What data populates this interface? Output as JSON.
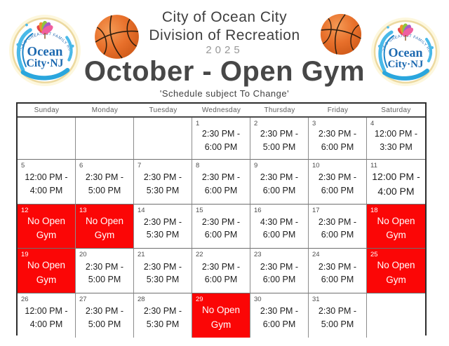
{
  "header": {
    "org_line1": "City of Ocean City",
    "org_line2": "Division of Recreation",
    "year": "2025",
    "title": "October - Open Gym",
    "note": "'Schedule subject To Change'"
  },
  "logo": {
    "arc_text": "AMERICA'S GREATEST FAMILY RESORT",
    "line1": "Ocean",
    "line2": "City·NJ"
  },
  "icons": {
    "left_of_title": "basketball-icon",
    "right_of_title": "basketball-icon",
    "left_badge": "ocean-city-nj-logo",
    "right_badge": "ocean-city-nj-logo"
  },
  "colors": {
    "closed_bg": "#fb0606",
    "closed_text": "#ffffff",
    "basketball_orange": "#e4702d",
    "logo_blue": "#1c69b0",
    "title_gray": "#474747"
  },
  "calendar": {
    "day_headers": [
      "Sunday",
      "Monday",
      "Tuesday",
      "Wednesday",
      "Thursday",
      "Friday",
      "Saturday"
    ],
    "closed_label": "No Open Gym",
    "weeks": [
      [
        {
          "date": "",
          "lines": []
        },
        {
          "date": "",
          "lines": []
        },
        {
          "date": "",
          "lines": []
        },
        {
          "date": "1",
          "lines": [
            "2:30 PM -",
            "6:00 PM"
          ]
        },
        {
          "date": "2",
          "lines": [
            "2:30 PM -",
            "5:00 PM"
          ]
        },
        {
          "date": "3",
          "lines": [
            "2:30 PM -",
            "6:00 PM"
          ]
        },
        {
          "date": "4",
          "lines": [
            "12:00 PM -",
            "3:30 PM"
          ]
        }
      ],
      [
        {
          "date": "5",
          "lines": [
            "12:00 PM -",
            "4:00 PM"
          ]
        },
        {
          "date": "6",
          "lines": [
            "2:30 PM -",
            "5:00 PM"
          ]
        },
        {
          "date": "7",
          "lines": [
            "2:30 PM -",
            "5:30 PM"
          ]
        },
        {
          "date": "8",
          "lines": [
            "2:30 PM -",
            "6:00 PM"
          ]
        },
        {
          "date": "9",
          "lines": [
            "2:30 PM -",
            "6:00 PM"
          ]
        },
        {
          "date": "10",
          "lines": [
            "2:30 PM -",
            "6:00 PM"
          ]
        },
        {
          "date": "11",
          "large": true,
          "lines": [
            "12:00 PM -",
            "4:00 PM"
          ]
        }
      ],
      [
        {
          "date": "12",
          "closed": true,
          "lines": [
            "No Open",
            "Gym"
          ]
        },
        {
          "date": "13",
          "closed": true,
          "lines": [
            "No Open",
            "Gym"
          ]
        },
        {
          "date": "14",
          "lines": [
            "2:30 PM -",
            "5:30 PM"
          ]
        },
        {
          "date": "15",
          "lines": [
            "2:30 PM -",
            "6:00 PM"
          ]
        },
        {
          "date": "16",
          "lines": [
            "4:30 PM -",
            "6:00 PM"
          ]
        },
        {
          "date": "17",
          "lines": [
            "2:30 PM -",
            "6:00 PM"
          ]
        },
        {
          "date": "18",
          "closed": true,
          "lines": [
            "No Open",
            "Gym"
          ]
        }
      ],
      [
        {
          "date": "19",
          "closed": true,
          "lines": [
            "No Open",
            "Gym"
          ]
        },
        {
          "date": "20",
          "lines": [
            "2:30 PM -",
            "5:00 PM"
          ]
        },
        {
          "date": "21",
          "lines": [
            "2:30 PM -",
            "5:30 PM"
          ]
        },
        {
          "date": "22",
          "lines": [
            "2:30 PM -",
            "6:00 PM"
          ]
        },
        {
          "date": "23",
          "lines": [
            "2:30 PM -",
            "6:00 PM"
          ]
        },
        {
          "date": "24",
          "lines": [
            "2:30 PM -",
            "6:00 PM"
          ]
        },
        {
          "date": "25",
          "closed": true,
          "lines": [
            "No Open",
            "Gym"
          ]
        }
      ],
      [
        {
          "date": "26",
          "lines": [
            "12:00 PM -",
            "4:00 PM"
          ]
        },
        {
          "date": "27",
          "lines": [
            "2:30 PM -",
            "5:00 PM"
          ]
        },
        {
          "date": "28",
          "lines": [
            "2:30 PM -",
            "5:30 PM"
          ]
        },
        {
          "date": "29",
          "closed": true,
          "lines": [
            "No Open",
            "Gym"
          ]
        },
        {
          "date": "30",
          "lines": [
            "2:30 PM -",
            "6:00 PM"
          ]
        },
        {
          "date": "31",
          "lines": [
            "2:30 PM -",
            "5:00 PM"
          ]
        },
        {
          "date": "",
          "lines": []
        }
      ]
    ]
  }
}
